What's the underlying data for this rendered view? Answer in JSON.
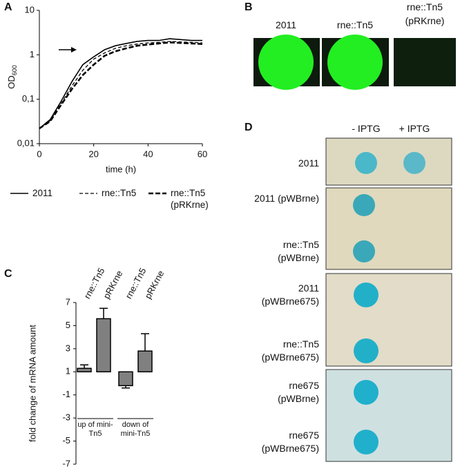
{
  "chart_data": [
    {
      "type": "line",
      "panel": "A",
      "xlabel": "time (h)",
      "ylabel": {
        "text": "OD",
        "subscript": "600"
      },
      "log_y": true,
      "x": [
        0,
        4,
        8,
        12,
        16,
        20,
        24,
        28,
        32,
        36,
        40,
        44,
        48,
        52,
        56,
        60
      ],
      "series": [
        {
          "name": "2011",
          "color": "#000000",
          "dash": "solid",
          "values": [
            0.022,
            0.035,
            0.09,
            0.25,
            0.6,
            0.9,
            1.3,
            1.6,
            1.8,
            2.0,
            2.1,
            2.1,
            2.3,
            2.2,
            2.1,
            2.1
          ]
        },
        {
          "name": "rne::Tn5",
          "color": "#000000",
          "dash": "dashed",
          "values": [
            0.022,
            0.033,
            0.08,
            0.2,
            0.45,
            0.8,
            1.1,
            1.4,
            1.6,
            1.75,
            1.85,
            1.9,
            2.0,
            1.95,
            1.9,
            1.85
          ]
        },
        {
          "name": "rne::Tn5 (pRKrne)",
          "color": "#000000",
          "dash": "bold-dashed",
          "values": [
            0.022,
            0.032,
            0.075,
            0.17,
            0.35,
            0.6,
            0.95,
            1.2,
            1.4,
            1.6,
            1.7,
            1.8,
            1.9,
            1.85,
            1.8,
            1.75
          ]
        }
      ],
      "xlim": [
        0,
        60
      ],
      "xticks": [
        0,
        20,
        40,
        60
      ],
      "ylim": [
        0.01,
        10
      ],
      "yticks": [
        {
          "value": 0.01,
          "label": "0,01"
        },
        {
          "value": 0.1,
          "label": "0,1"
        },
        1,
        10
      ]
    },
    {
      "type": "bar",
      "panel": "C",
      "ylabel": "fold change of mRNA amount",
      "base": 1,
      "color": "#808080",
      "categories": [
        "rne::Tn5",
        "pRKrne",
        "rne::Tn5",
        "pRKrne"
      ],
      "values": [
        1.3,
        5.6,
        -0.2,
        2.8
      ],
      "errors": [
        0.3,
        0.9,
        0.2,
        1.5
      ],
      "groups": [
        "up of mini-Tn5",
        "down of mini-Tn5"
      ],
      "ylim": [
        -7,
        7
      ],
      "yticks": [
        -7,
        -5,
        -3,
        -1,
        1,
        3,
        5,
        7
      ]
    }
  ],
  "panel_b": {
    "panel": "B",
    "labels": [
      "2011",
      "rne::Tn5",
      "rne::Tn5 (pRKrne)"
    ]
  },
  "panel_d": {
    "panel": "D",
    "columns": [
      "- IPTG",
      "+ IPTG"
    ],
    "plates": [
      [
        "2011"
      ],
      [
        "2011 (pWBrne)",
        "rne::Tn5 (pWBrne)"
      ],
      [
        "2011 (pWBrne675)",
        "rne::Tn5 (pWBrne675)"
      ],
      [
        "rne675 (pWBrne)",
        "rne675 (pWBrne675)"
      ]
    ]
  }
}
